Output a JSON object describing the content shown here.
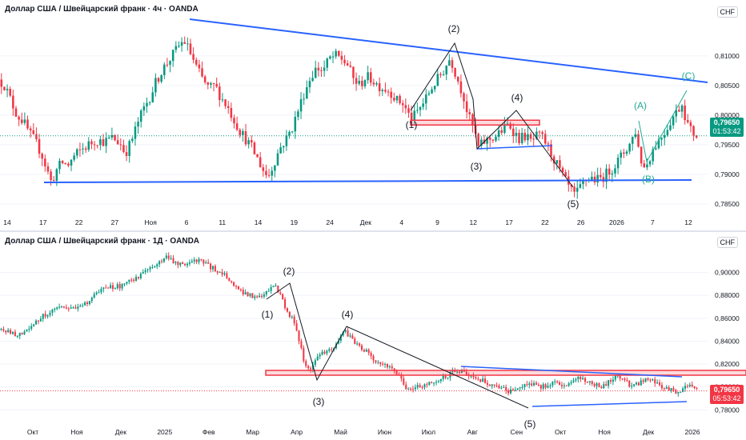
{
  "chart_data": [
    {
      "type": "candlestick",
      "title": "Доллар США / Швейцарский франк · 4ч · OANDA",
      "currency": "CHF",
      "ylim": [
        0.7835,
        0.817
      ],
      "y_ticks": [
        0.81,
        0.805,
        0.8,
        0.795,
        0.79,
        0.785
      ],
      "y_tick_labels": [
        "0,81000",
        "0,80500",
        "0,80000",
        "0,79500",
        "0,79000",
        "0,78500"
      ],
      "x_tick_labels": [
        "14",
        "17",
        "22",
        "27",
        "Ноя",
        "6",
        "11",
        "14",
        "19",
        "24",
        "Дек",
        "4",
        "9",
        "12",
        "17",
        "22",
        "26",
        "2026",
        "7",
        "12"
      ],
      "last_price": "0,79650",
      "countdown": "01:53:42",
      "path_points": [
        [
          0,
          0.806
        ],
        [
          3,
          0.805
        ],
        [
          6,
          0.8025
        ],
        [
          9,
          0.8
        ],
        [
          12,
          0.799
        ],
        [
          15,
          0.797
        ],
        [
          18,
          0.7955
        ],
        [
          21,
          0.7935
        ],
        [
          24,
          0.7905
        ],
        [
          26,
          0.7885
        ],
        [
          28,
          0.7905
        ],
        [
          31,
          0.792
        ],
        [
          34,
          0.7915
        ],
        [
          37,
          0.793
        ],
        [
          40,
          0.794
        ],
        [
          44,
          0.795
        ],
        [
          48,
          0.7958
        ],
        [
          52,
          0.7955
        ],
        [
          56,
          0.7962
        ],
        [
          60,
          0.795
        ],
        [
          62,
          0.7935
        ],
        [
          65,
          0.7955
        ],
        [
          68,
          0.7985
        ],
        [
          71,
          0.801
        ],
        [
          74,
          0.803
        ],
        [
          77,
          0.8055
        ],
        [
          80,
          0.8075
        ],
        [
          83,
          0.809
        ],
        [
          86,
          0.8105
        ],
        [
          89,
          0.812
        ],
        [
          91,
          0.8125
        ],
        [
          94,
          0.8105
        ],
        [
          97,
          0.808
        ],
        [
          100,
          0.806
        ],
        [
          103,
          0.8045
        ],
        [
          106,
          0.805
        ],
        [
          109,
          0.803
        ],
        [
          112,
          0.8015
        ],
        [
          115,
          0.7995
        ],
        [
          118,
          0.7975
        ],
        [
          121,
          0.796
        ],
        [
          124,
          0.7945
        ],
        [
          127,
          0.7925
        ],
        [
          130,
          0.7905
        ],
        [
          132,
          0.7895
        ],
        [
          135,
          0.792
        ],
        [
          138,
          0.7945
        ],
        [
          141,
          0.796
        ],
        [
          144,
          0.798
        ],
        [
          147,
          0.801
        ],
        [
          150,
          0.804
        ],
        [
          153,
          0.8065
        ],
        [
          156,
          0.808
        ],
        [
          159,
          0.8075
        ],
        [
          162,
          0.8095
        ],
        [
          165,
          0.81
        ],
        [
          168,
          0.8095
        ],
        [
          171,
          0.8085
        ],
        [
          174,
          0.806
        ],
        [
          177,
          0.805
        ],
        [
          180,
          0.8065
        ],
        [
          183,
          0.806
        ],
        [
          186,
          0.805
        ],
        [
          189,
          0.8045
        ],
        [
          192,
          0.804
        ],
        [
          195,
          0.8025
        ],
        [
          198,
          0.802
        ],
        [
          201,
          0.8
        ],
        [
          203,
          0.7995
        ],
        [
          206,
          0.801
        ],
        [
          209,
          0.8025
        ],
        [
          212,
          0.8045
        ],
        [
          215,
          0.806
        ],
        [
          218,
          0.8075
        ],
        [
          221,
          0.8095
        ],
        [
          222,
          0.809
        ],
        [
          225,
          0.806
        ],
        [
          228,
          0.803
        ],
        [
          230,
          0.8
        ],
        [
          233,
          0.7975
        ],
        [
          235,
          0.7945
        ],
        [
          238,
          0.7955
        ],
        [
          241,
          0.796
        ],
        [
          244,
          0.7965
        ],
        [
          247,
          0.7975
        ],
        [
          250,
          0.7985
        ],
        [
          252,
          0.7975
        ],
        [
          255,
          0.796
        ],
        [
          258,
          0.7965
        ],
        [
          261,
          0.7955
        ],
        [
          264,
          0.7965
        ],
        [
          267,
          0.796
        ],
        [
          270,
          0.794
        ],
        [
          273,
          0.792
        ],
        [
          276,
          0.79
        ],
        [
          279,
          0.788
        ],
        [
          282,
          0.7865
        ],
        [
          284,
          0.787
        ],
        [
          287,
          0.789
        ],
        [
          290,
          0.7895
        ],
        [
          293,
          0.789
        ],
        [
          296,
          0.7895
        ],
        [
          299,
          0.7905
        ],
        [
          302,
          0.7915
        ],
        [
          305,
          0.793
        ],
        [
          308,
          0.7945
        ],
        [
          310,
          0.7955
        ],
        [
          312,
          0.7975
        ],
        [
          314,
          0.7935
        ],
        [
          316,
          0.791
        ],
        [
          318,
          0.792
        ],
        [
          321,
          0.7945
        ],
        [
          324,
          0.796
        ],
        [
          327,
          0.7975
        ],
        [
          330,
          0.7995
        ],
        [
          333,
          0.801
        ],
        [
          335,
          0.802
        ],
        [
          337,
          0.799
        ],
        [
          339,
          0.7975
        ],
        [
          342,
          0.7965
        ]
      ],
      "lines": [
        {
          "color": "#2962ff",
          "points": [
            [
              0,
              0.8135
            ],
            [
              0,
              0.8135
            ]
          ],
          "dummy": true
        },
        {
          "color": "#2962ff",
          "points": [
            [
              0,
              0.7875
            ],
            [
              342,
              0.788
            ]
          ]
        }
      ],
      "resistance_zone": {
        "y_from": 0.7985,
        "y_to": 0.799
      },
      "wave_labels": [
        "(1)",
        "(2)",
        "(3)",
        "(4)",
        "(5)"
      ],
      "correction_labels": [
        "(A)",
        "(B)",
        "(C)"
      ]
    },
    {
      "type": "candlestick",
      "title": "Доллар США / Швейцарский франк · 1Д · OANDA",
      "currency": "CHF",
      "ylim": [
        0.776,
        0.92
      ],
      "y_ticks": [
        0.9,
        0.88,
        0.86,
        0.84,
        0.82,
        0.8,
        0.78
      ],
      "y_tick_labels": [
        "0,90000",
        "0,88000",
        "0,86000",
        "0,84000",
        "0,82000",
        "0,80000",
        "0,78000"
      ],
      "x_tick_labels": [
        "Окт",
        "Ноя",
        "Дек",
        "2025",
        "Фев",
        "Мар",
        "Апр",
        "Май",
        "Июн",
        "Июл",
        "Авг",
        "Сен",
        "Окт",
        "Ноя",
        "Дек",
        "2026"
      ],
      "last_price": "0,79650",
      "countdown": "05:53:42",
      "path_points": [
        [
          0,
          0.85
        ],
        [
          4,
          0.848
        ],
        [
          8,
          0.846
        ],
        [
          12,
          0.847
        ],
        [
          16,
          0.854
        ],
        [
          20,
          0.862
        ],
        [
          24,
          0.866
        ],
        [
          28,
          0.868
        ],
        [
          32,
          0.869
        ],
        [
          36,
          0.87
        ],
        [
          40,
          0.872
        ],
        [
          44,
          0.88
        ],
        [
          48,
          0.885
        ],
        [
          52,
          0.887
        ],
        [
          56,
          0.888
        ],
        [
          60,
          0.892
        ],
        [
          64,
          0.896
        ],
        [
          68,
          0.9
        ],
        [
          72,
          0.905
        ],
        [
          75,
          0.91
        ],
        [
          78,
          0.915
        ],
        [
          81,
          0.91
        ],
        [
          84,
          0.908
        ],
        [
          87,
          0.906
        ],
        [
          90,
          0.909
        ],
        [
          93,
          0.912
        ],
        [
          96,
          0.907
        ],
        [
          99,
          0.904
        ],
        [
          102,
          0.901
        ],
        [
          105,
          0.898
        ],
        [
          108,
          0.89
        ],
        [
          111,
          0.886
        ],
        [
          114,
          0.882
        ],
        [
          117,
          0.88
        ],
        [
          120,
          0.878
        ],
        [
          123,
          0.88
        ],
        [
          126,
          0.885
        ],
        [
          128,
          0.888
        ],
        [
          130,
          0.883
        ],
        [
          133,
          0.87
        ],
        [
          136,
          0.86
        ],
        [
          138,
          0.85
        ],
        [
          140,
          0.835
        ],
        [
          142,
          0.82
        ],
        [
          144,
          0.816
        ],
        [
          146,
          0.82
        ],
        [
          149,
          0.828
        ],
        [
          152,
          0.83
        ],
        [
          155,
          0.835
        ],
        [
          158,
          0.84
        ],
        [
          160,
          0.85
        ],
        [
          162,
          0.846
        ],
        [
          165,
          0.84
        ],
        [
          168,
          0.835
        ],
        [
          171,
          0.83
        ],
        [
          174,
          0.825
        ],
        [
          177,
          0.82
        ],
        [
          180,
          0.818
        ],
        [
          183,
          0.815
        ],
        [
          186,
          0.81
        ],
        [
          189,
          0.8
        ],
        [
          192,
          0.799
        ],
        [
          195,
          0.8
        ],
        [
          198,
          0.803
        ],
        [
          201,
          0.805
        ],
        [
          204,
          0.806
        ],
        [
          207,
          0.808
        ],
        [
          210,
          0.812
        ],
        [
          213,
          0.815
        ],
        [
          216,
          0.813
        ],
        [
          219,
          0.81
        ],
        [
          222,
          0.808
        ],
        [
          225,
          0.805
        ],
        [
          228,
          0.802
        ],
        [
          231,
          0.8
        ],
        [
          234,
          0.798
        ],
        [
          237,
          0.796
        ],
        [
          240,
          0.798
        ],
        [
          243,
          0.802
        ],
        [
          246,
          0.804
        ],
        [
          249,
          0.802
        ],
        [
          252,
          0.8
        ],
        [
          255,
          0.802
        ],
        [
          258,
          0.805
        ],
        [
          261,
          0.803
        ],
        [
          264,
          0.8
        ],
        [
          267,
          0.805
        ],
        [
          270,
          0.808
        ],
        [
          273,
          0.806
        ],
        [
          276,
          0.803
        ],
        [
          279,
          0.8
        ],
        [
          282,
          0.803
        ],
        [
          285,
          0.808
        ],
        [
          288,
          0.809
        ],
        [
          291,
          0.805
        ],
        [
          294,
          0.8
        ],
        [
          297,
          0.803
        ],
        [
          300,
          0.806
        ],
        [
          303,
          0.807
        ],
        [
          306,
          0.802
        ],
        [
          309,
          0.799
        ],
        [
          312,
          0.797
        ],
        [
          315,
          0.796
        ],
        [
          318,
          0.799
        ],
        [
          321,
          0.8
        ],
        [
          324,
          0.798
        ]
      ],
      "resistance_zone": {
        "y_from": 0.81,
        "y_to": 0.813
      },
      "wave_labels": [
        "(1)",
        "(2)",
        "(3)",
        "(4)",
        "(5)"
      ]
    }
  ]
}
